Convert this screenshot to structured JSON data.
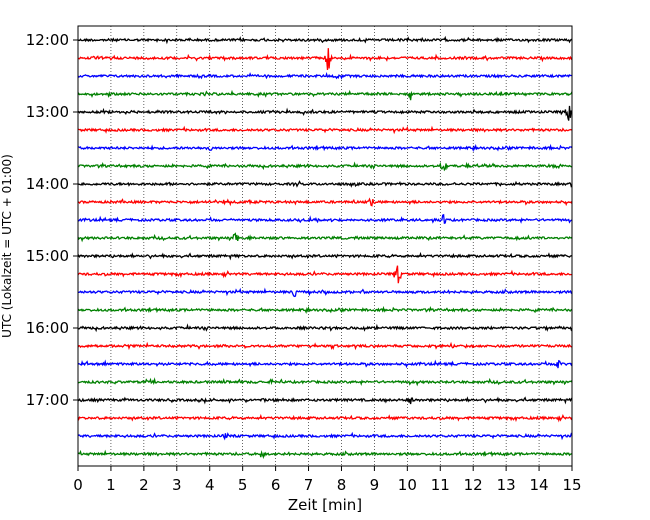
{
  "chart_data": {
    "type": "line",
    "title": "",
    "xlabel": "Zeit  [min]",
    "ylabel": "UTC (Lokalzeit = UTC + 01:00)",
    "xlim": [
      0,
      15
    ],
    "x_ticks": [
      0,
      1,
      2,
      3,
      4,
      5,
      6,
      7,
      8,
      9,
      10,
      11,
      12,
      13,
      14,
      15
    ],
    "x_tick_labels": [
      "0",
      "1",
      "2",
      "3",
      "4",
      "5",
      "6",
      "7",
      "8",
      "9",
      "10",
      "11",
      "12",
      "13",
      "14",
      "15"
    ],
    "y_tick_labels": [
      "12:00",
      "13:00",
      "14:00",
      "15:00",
      "16:00",
      "17:00"
    ],
    "grid": "vertical dotted lines at each minute",
    "trace_colors": [
      "#000000",
      "#ff0000",
      "#0000ff",
      "#008000"
    ],
    "series": [
      {
        "start": "12:00",
        "color": "#000000"
      },
      {
        "start": "12:15",
        "color": "#ff0000",
        "events": [
          {
            "t": 7.6,
            "amp": 1.0
          }
        ]
      },
      {
        "start": "12:30",
        "color": "#0000ff"
      },
      {
        "start": "12:45",
        "color": "#008000",
        "events": [
          {
            "t": 10.1,
            "amp": 0.35
          }
        ]
      },
      {
        "start": "13:00",
        "color": "#000000",
        "events": [
          {
            "t": 14.9,
            "amp": 0.5
          }
        ]
      },
      {
        "start": "13:15",
        "color": "#ff0000"
      },
      {
        "start": "13:30",
        "color": "#0000ff",
        "events": [
          {
            "t": 4.0,
            "amp": 0.3
          }
        ]
      },
      {
        "start": "13:45",
        "color": "#008000",
        "events": [
          {
            "t": 11.1,
            "amp": 0.4
          }
        ]
      },
      {
        "start": "14:00",
        "color": "#000000"
      },
      {
        "start": "14:15",
        "color": "#ff0000",
        "events": [
          {
            "t": 8.9,
            "amp": 0.3
          }
        ]
      },
      {
        "start": "14:30",
        "color": "#0000ff",
        "events": [
          {
            "t": 11.1,
            "amp": 0.3
          }
        ]
      },
      {
        "start": "14:45",
        "color": "#008000",
        "events": [
          {
            "t": 4.8,
            "amp": 0.35
          }
        ]
      },
      {
        "start": "15:00",
        "color": "#000000"
      },
      {
        "start": "15:15",
        "color": "#ff0000",
        "events": [
          {
            "t": 9.7,
            "amp": 0.65
          }
        ]
      },
      {
        "start": "15:30",
        "color": "#0000ff",
        "events": [
          {
            "t": 6.6,
            "amp": 0.4
          }
        ]
      },
      {
        "start": "15:45",
        "color": "#008000"
      },
      {
        "start": "16:00",
        "color": "#000000"
      },
      {
        "start": "16:15",
        "color": "#ff0000"
      },
      {
        "start": "16:30",
        "color": "#0000ff",
        "events": [
          {
            "t": 14.6,
            "amp": 0.3
          }
        ]
      },
      {
        "start": "16:45",
        "color": "#008000"
      },
      {
        "start": "17:00",
        "color": "#000000",
        "events": [
          {
            "t": 10.1,
            "amp": 0.35
          }
        ]
      },
      {
        "start": "17:15",
        "color": "#ff0000"
      },
      {
        "start": "17:30",
        "color": "#0000ff",
        "events": [
          {
            "t": 4.5,
            "amp": 0.3
          }
        ]
      },
      {
        "start": "17:45",
        "color": "#008000",
        "events": [
          {
            "t": 5.6,
            "amp": 0.3
          }
        ]
      }
    ]
  }
}
